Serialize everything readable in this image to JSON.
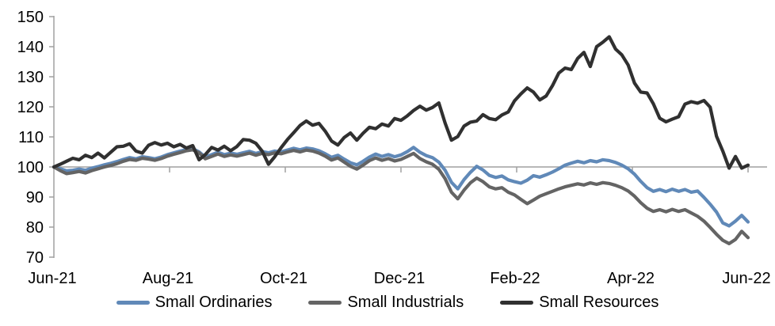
{
  "chart_data": {
    "type": "line",
    "title": "",
    "xlabel": "",
    "ylabel": "",
    "x_tick_labels": [
      "Jun-21",
      "Aug-21",
      "Oct-21",
      "Dec-21",
      "Feb-22",
      "Apr-22",
      "Jun-22"
    ],
    "y_ticks": [
      150,
      140,
      130,
      120,
      110,
      100,
      90,
      80,
      70
    ],
    "ylim": [
      70,
      150
    ],
    "baseline_gridline": 100,
    "grid": "single horizontal line at 100 only",
    "legend_position": "bottom",
    "axis_color": "#a0a0a0",
    "x_note": "index values (Jun-21 = 100), sampled at 111 equal intervals from Jun-21 to Jun-22",
    "series": [
      {
        "name": "Small Ordinaries",
        "color": "#6089b8",
        "values": [
          100.0,
          99.4,
          98.7,
          98.9,
          99.3,
          98.9,
          99.6,
          100.1,
          100.7,
          101.2,
          101.8,
          102.5,
          103.1,
          102.7,
          103.4,
          103.1,
          102.7,
          103.3,
          104.1,
          104.7,
          105.3,
          105.8,
          106.1,
          105.0,
          103.3,
          104.1,
          104.9,
          104.1,
          104.6,
          104.2,
          104.7,
          105.2,
          104.5,
          105.1,
          104.7,
          105.3,
          105.0,
          105.6,
          106.2,
          105.7,
          106.3,
          106.0,
          105.4,
          104.4,
          103.2,
          103.9,
          102.6,
          101.4,
          100.7,
          101.9,
          103.3,
          104.3,
          103.5,
          104.1,
          103.4,
          104.0,
          105.1,
          106.5,
          104.9,
          103.8,
          103.1,
          101.6,
          98.9,
          94.9,
          92.7,
          95.8,
          98.2,
          100.2,
          99.0,
          97.2,
          96.5,
          97.0,
          95.7,
          95.1,
          94.6,
          95.6,
          97.1,
          96.6,
          97.4,
          98.3,
          99.4,
          100.6,
          101.3,
          101.9,
          101.4,
          102.1,
          101.7,
          102.4,
          102.1,
          101.5,
          100.6,
          99.4,
          97.6,
          95.2,
          93.1,
          91.9,
          92.5,
          91.8,
          92.6,
          91.9,
          92.5,
          91.6,
          92.0,
          89.9,
          87.6,
          85.0,
          81.4,
          80.4,
          82.0,
          83.9,
          81.7
        ]
      },
      {
        "name": "Small Industrials",
        "color": "#646464",
        "values": [
          100.0,
          98.8,
          97.8,
          98.1,
          98.5,
          98.0,
          98.8,
          99.4,
          100.0,
          100.5,
          101.1,
          101.9,
          102.5,
          102.2,
          102.9,
          102.6,
          102.2,
          102.8,
          103.6,
          104.2,
          104.8,
          105.4,
          105.7,
          104.7,
          102.7,
          103.5,
          104.3,
          103.5,
          104.0,
          103.6,
          104.1,
          104.6,
          103.9,
          104.5,
          104.1,
          104.7,
          104.4,
          105.0,
          105.5,
          105.0,
          105.6,
          105.3,
          104.6,
          103.6,
          102.3,
          103.0,
          101.6,
          100.2,
          99.3,
          100.6,
          102.1,
          103.0,
          102.2,
          102.8,
          102.0,
          102.5,
          103.5,
          104.5,
          102.8,
          101.7,
          100.9,
          99.2,
          96.1,
          91.6,
          89.4,
          92.3,
          94.7,
          96.3,
          95.1,
          93.4,
          92.7,
          93.1,
          91.6,
          90.7,
          89.2,
          87.8,
          89.0,
          90.3,
          91.1,
          91.9,
          92.7,
          93.4,
          93.9,
          94.4,
          94.0,
          94.7,
          94.2,
          94.8,
          94.5,
          93.9,
          93.1,
          92.0,
          90.3,
          88.1,
          86.3,
          85.2,
          85.8,
          85.1,
          85.9,
          85.2,
          85.8,
          84.7,
          83.6,
          82.0,
          79.9,
          77.6,
          75.6,
          74.5,
          75.9,
          78.6,
          76.5
        ]
      },
      {
        "name": "Small Resources",
        "color": "#303030",
        "values": [
          100.0,
          100.9,
          101.9,
          102.9,
          102.4,
          103.9,
          103.1,
          104.6,
          103.0,
          104.9,
          106.7,
          106.9,
          107.7,
          105.3,
          104.6,
          107.2,
          108.1,
          107.3,
          107.9,
          106.7,
          107.5,
          106.3,
          107.1,
          102.4,
          104.1,
          106.5,
          105.6,
          106.9,
          105.4,
          106.8,
          109.1,
          108.9,
          107.9,
          105.3,
          100.9,
          103.4,
          106.4,
          109.1,
          111.4,
          113.8,
          115.3,
          113.9,
          114.5,
          111.9,
          108.6,
          107.3,
          109.8,
          111.3,
          108.9,
          111.2,
          113.2,
          112.7,
          114.3,
          113.6,
          116.1,
          115.5,
          117.0,
          118.8,
          120.2,
          118.9,
          119.8,
          121.3,
          114.6,
          108.9,
          110.1,
          113.6,
          114.9,
          115.3,
          117.4,
          116.1,
          115.7,
          117.3,
          118.3,
          122.0,
          124.3,
          126.3,
          124.9,
          122.3,
          123.6,
          127.0,
          131.2,
          132.9,
          132.4,
          136.1,
          138.1,
          133.4,
          140.0,
          141.5,
          143.3,
          139.2,
          137.3,
          133.9,
          127.9,
          124.9,
          124.6,
          121.0,
          116.2,
          115.0,
          115.9,
          116.7,
          120.9,
          121.7,
          121.2,
          122.1,
          119.9,
          110.2,
          105.3,
          99.6,
          103.5,
          99.6,
          100.6
        ]
      }
    ]
  }
}
